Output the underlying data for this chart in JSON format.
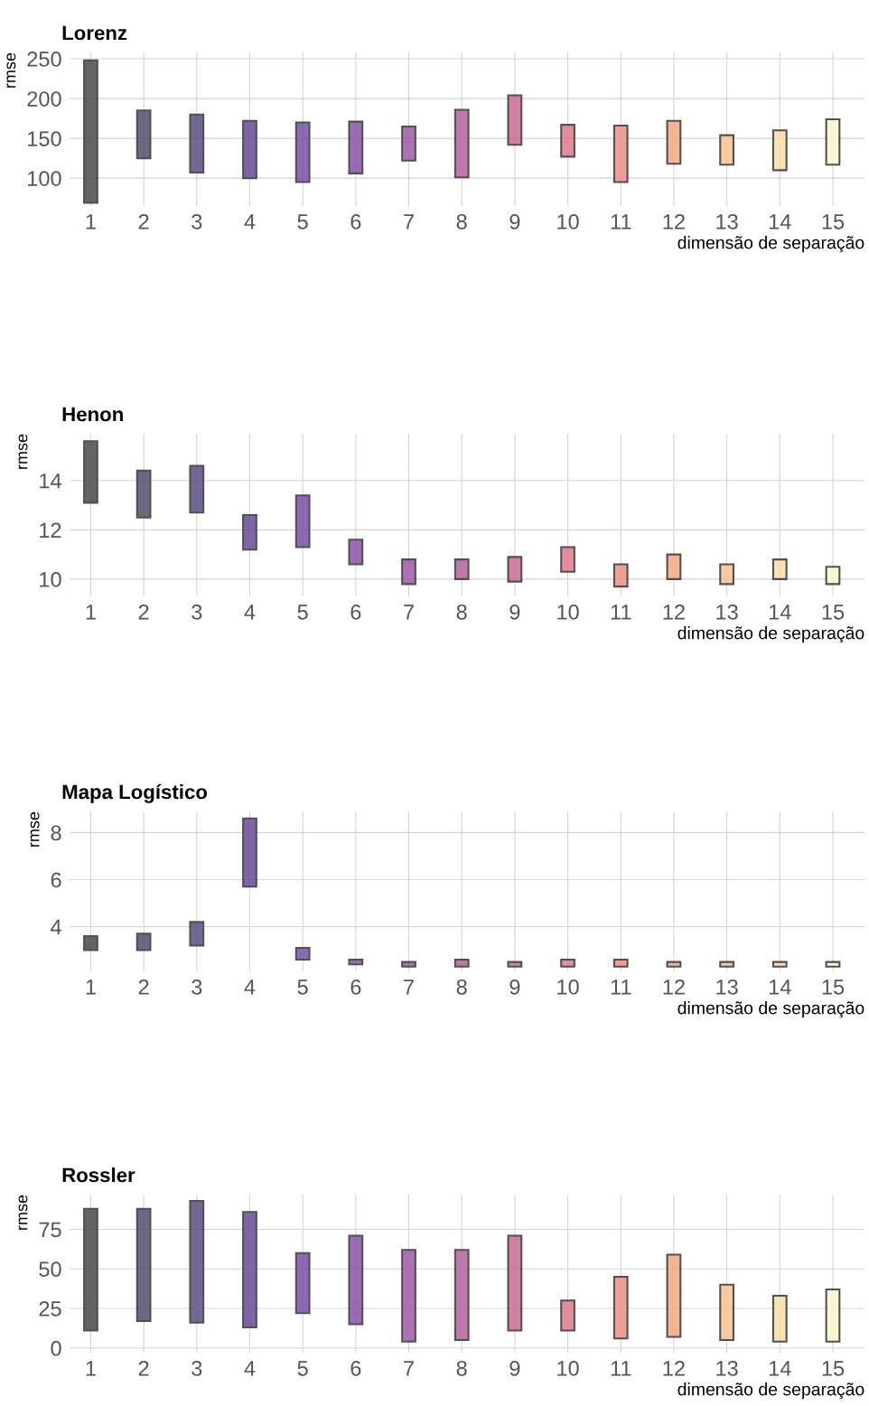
{
  "chart_data": [
    {
      "type": "bar",
      "title": "Lorenz",
      "xlabel": "dimensão de separação",
      "ylabel": "rmse",
      "categories": [
        "1",
        "2",
        "3",
        "4",
        "5",
        "6",
        "7",
        "8",
        "9",
        "10",
        "11",
        "12",
        "13",
        "14",
        "15"
      ],
      "series": [
        {
          "colors": [
            "#4a4a4a",
            "#53506b",
            "#5a4f86",
            "#6a4c9a",
            "#7b4fa6",
            "#8a52ac",
            "#a05aa8",
            "#b6629e",
            "#cc6b93",
            "#e07a8a",
            "#ed8f82",
            "#f4a880",
            "#f8c28e",
            "#fbdda6",
            "#fcf6c6"
          ],
          "base": [
            69,
            125,
            107,
            100,
            95,
            106,
            122,
            101,
            142,
            127,
            95,
            118,
            117,
            110,
            117
          ],
          "values": [
            179,
            60,
            73,
            72,
            75,
            65,
            43,
            85,
            62,
            40,
            71,
            54,
            37,
            50,
            57
          ]
        }
      ],
      "ylim": [
        65,
        258
      ],
      "yticks": [
        100,
        150,
        200,
        250
      ],
      "grid": true
    },
    {
      "type": "bar",
      "title": "Henon",
      "xlabel": "dimensão de separação",
      "ylabel": "rmse",
      "categories": [
        "1",
        "2",
        "3",
        "4",
        "5",
        "6",
        "7",
        "8",
        "9",
        "10",
        "11",
        "12",
        "13",
        "14",
        "15"
      ],
      "series": [
        {
          "colors": [
            "#4a4a4a",
            "#53506b",
            "#5a4f86",
            "#6a4c9a",
            "#7b4fa6",
            "#8a52ac",
            "#a05aa8",
            "#b6629e",
            "#cc6b93",
            "#e07a8a",
            "#ed8f82",
            "#f4a880",
            "#f8c28e",
            "#fbdda6",
            "#fcf6c6"
          ],
          "base": [
            13.1,
            12.5,
            12.7,
            11.2,
            11.3,
            10.6,
            9.8,
            10.0,
            9.9,
            10.3,
            9.7,
            10.0,
            9.8,
            10.0,
            9.8
          ],
          "values": [
            2.5,
            1.9,
            1.9,
            1.4,
            2.1,
            1.0,
            1.0,
            0.8,
            1.0,
            1.0,
            0.9,
            1.0,
            0.8,
            0.8,
            0.7
          ]
        }
      ],
      "ylim": [
        9.3,
        15.9
      ],
      "yticks": [
        10,
        12,
        14
      ],
      "grid": true
    },
    {
      "type": "bar",
      "title": "Mapa Logístico",
      "xlabel": "dimensão de separação",
      "ylabel": "rmse",
      "categories": [
        "1",
        "2",
        "3",
        "4",
        "5",
        "6",
        "7",
        "8",
        "9",
        "10",
        "11",
        "12",
        "13",
        "14",
        "15"
      ],
      "series": [
        {
          "colors": [
            "#4a4a4a",
            "#53506b",
            "#5a4f86",
            "#6a4c9a",
            "#7b4fa6",
            "#8a52ac",
            "#a05aa8",
            "#b6629e",
            "#cc6b93",
            "#e07a8a",
            "#ed8f82",
            "#f4a880",
            "#f8c28e",
            "#fbdda6",
            "#fcf6c6"
          ],
          "base": [
            3.0,
            3.0,
            3.2,
            5.7,
            2.6,
            2.4,
            2.3,
            2.3,
            2.3,
            2.3,
            2.3,
            2.3,
            2.3,
            2.3,
            2.3
          ],
          "values": [
            0.6,
            0.7,
            1.0,
            2.9,
            0.5,
            0.2,
            0.2,
            0.3,
            0.2,
            0.3,
            0.3,
            0.2,
            0.2,
            0.2,
            0.2
          ]
        }
      ],
      "ylim": [
        2.1,
        8.9
      ],
      "yticks": [
        4,
        6,
        8
      ],
      "grid": true
    },
    {
      "type": "bar",
      "title": "Rossler",
      "xlabel": "dimensão de separação",
      "ylabel": "rmse",
      "categories": [
        "1",
        "2",
        "3",
        "4",
        "5",
        "6",
        "7",
        "8",
        "9",
        "10",
        "11",
        "12",
        "13",
        "14",
        "15"
      ],
      "series": [
        {
          "colors": [
            "#4a4a4a",
            "#53506b",
            "#5a4f86",
            "#6a4c9a",
            "#7b4fa6",
            "#8a52ac",
            "#a05aa8",
            "#b6629e",
            "#cc6b93",
            "#e07a8a",
            "#ed8f82",
            "#f4a880",
            "#f8c28e",
            "#fbdda6",
            "#fcf6c6"
          ],
          "base": [
            11,
            17,
            16,
            13,
            22,
            15,
            4,
            5,
            11,
            11,
            6,
            7,
            5,
            4,
            4
          ],
          "values": [
            77,
            71,
            77,
            73,
            38,
            56,
            58,
            57,
            60,
            19,
            39,
            52,
            35,
            29,
            33
          ]
        }
      ],
      "ylim": [
        -3,
        97
      ],
      "yticks": [
        0,
        25,
        50,
        75
      ],
      "grid": true
    }
  ]
}
